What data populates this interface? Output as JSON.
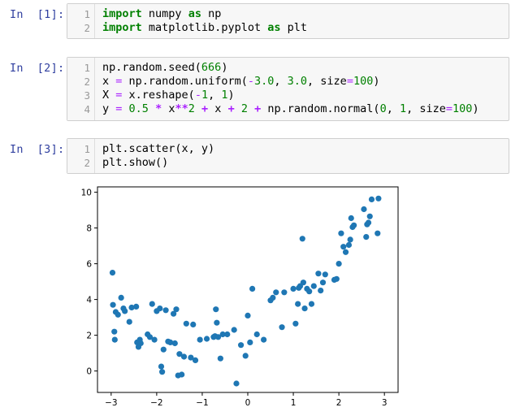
{
  "cells": [
    {
      "prompt": "In  [1]:",
      "lines": [
        {
          "no": "1",
          "tokens": [
            {
              "t": "import",
              "c": "kw"
            },
            {
              "t": " numpy ",
              "c": "plain"
            },
            {
              "t": "as",
              "c": "kw"
            },
            {
              "t": " np",
              "c": "plain"
            }
          ]
        },
        {
          "no": "2",
          "tokens": [
            {
              "t": "import",
              "c": "kw"
            },
            {
              "t": " matplotlib.pyplot ",
              "c": "plain"
            },
            {
              "t": "as",
              "c": "kw"
            },
            {
              "t": " plt",
              "c": "plain"
            }
          ]
        }
      ]
    },
    {
      "prompt": "In  [2]:",
      "lines": [
        {
          "no": "1",
          "tokens": [
            {
              "t": "np.random.seed(",
              "c": "plain"
            },
            {
              "t": "666",
              "c": "num"
            },
            {
              "t": ")",
              "c": "plain"
            }
          ]
        },
        {
          "no": "2",
          "tokens": [
            {
              "t": "x ",
              "c": "plain"
            },
            {
              "t": "=",
              "c": "eq"
            },
            {
              "t": " np.random.uniform(",
              "c": "plain"
            },
            {
              "t": "-",
              "c": "eq"
            },
            {
              "t": "3.0",
              "c": "num"
            },
            {
              "t": ", ",
              "c": "plain"
            },
            {
              "t": "3.0",
              "c": "num"
            },
            {
              "t": ", size",
              "c": "plain"
            },
            {
              "t": "=",
              "c": "eq"
            },
            {
              "t": "100",
              "c": "num"
            },
            {
              "t": ")",
              "c": "plain"
            }
          ]
        },
        {
          "no": "3",
          "tokens": [
            {
              "t": "X ",
              "c": "plain"
            },
            {
              "t": "=",
              "c": "eq"
            },
            {
              "t": " x.reshape(",
              "c": "plain"
            },
            {
              "t": "-",
              "c": "eq"
            },
            {
              "t": "1",
              "c": "num"
            },
            {
              "t": ", ",
              "c": "plain"
            },
            {
              "t": "1",
              "c": "num"
            },
            {
              "t": ")",
              "c": "plain"
            }
          ]
        },
        {
          "no": "4",
          "tokens": [
            {
              "t": "y ",
              "c": "plain"
            },
            {
              "t": "=",
              "c": "eq"
            },
            {
              "t": " ",
              "c": "plain"
            },
            {
              "t": "0.5",
              "c": "num"
            },
            {
              "t": " ",
              "c": "plain"
            },
            {
              "t": "*",
              "c": "op"
            },
            {
              "t": " x",
              "c": "plain"
            },
            {
              "t": "**",
              "c": "op"
            },
            {
              "t": "2",
              "c": "num"
            },
            {
              "t": " ",
              "c": "plain"
            },
            {
              "t": "+",
              "c": "op"
            },
            {
              "t": " x ",
              "c": "plain"
            },
            {
              "t": "+",
              "c": "op"
            },
            {
              "t": " ",
              "c": "plain"
            },
            {
              "t": "2",
              "c": "num"
            },
            {
              "t": " ",
              "c": "plain"
            },
            {
              "t": "+",
              "c": "op"
            },
            {
              "t": " np.random.normal(",
              "c": "plain"
            },
            {
              "t": "0",
              "c": "num"
            },
            {
              "t": ", ",
              "c": "plain"
            },
            {
              "t": "1",
              "c": "num"
            },
            {
              "t": ", size",
              "c": "plain"
            },
            {
              "t": "=",
              "c": "eq"
            },
            {
              "t": "100",
              "c": "num"
            },
            {
              "t": ")",
              "c": "plain"
            }
          ]
        }
      ]
    },
    {
      "prompt": "In  [3]:",
      "lines": [
        {
          "no": "1",
          "tokens": [
            {
              "t": "plt.scatter(x, y)",
              "c": "plain"
            }
          ]
        },
        {
          "no": "2",
          "tokens": [
            {
              "t": "plt.show()",
              "c": "plain"
            }
          ]
        }
      ]
    }
  ],
  "chart_data": {
    "type": "scatter",
    "title": "",
    "xlabel": "",
    "ylabel": "",
    "xlim": [
      -3.3,
      3.3
    ],
    "ylim": [
      -1.2,
      10.3
    ],
    "xticks": [
      -3,
      -2,
      -1,
      0,
      1,
      2,
      3
    ],
    "yticks": [
      0,
      2,
      4,
      6,
      8,
      10
    ],
    "grid": false,
    "point_color": "#1f77b4",
    "points": [
      [
        -2.97,
        5.5
      ],
      [
        -2.96,
        3.7
      ],
      [
        -2.93,
        2.2
      ],
      [
        -2.92,
        1.75
      ],
      [
        -2.9,
        3.3
      ],
      [
        -2.85,
        3.15
      ],
      [
        -2.78,
        4.1
      ],
      [
        -2.73,
        3.5
      ],
      [
        -2.7,
        3.35
      ],
      [
        -2.6,
        2.75
      ],
      [
        -2.55,
        3.55
      ],
      [
        -2.45,
        3.6
      ],
      [
        -2.43,
        1.6
      ],
      [
        -2.4,
        1.35
      ],
      [
        -2.37,
        1.75
      ],
      [
        -2.35,
        1.55
      ],
      [
        -2.2,
        2.05
      ],
      [
        -2.15,
        1.9
      ],
      [
        -2.1,
        3.75
      ],
      [
        -2.05,
        1.75
      ],
      [
        -2.0,
        3.35
      ],
      [
        -1.93,
        3.5
      ],
      [
        -1.9,
        0.25
      ],
      [
        -1.88,
        -0.05
      ],
      [
        -1.85,
        1.2
      ],
      [
        -1.8,
        3.4
      ],
      [
        -1.75,
        1.65
      ],
      [
        -1.7,
        1.6
      ],
      [
        -1.63,
        3.2
      ],
      [
        -1.6,
        1.55
      ],
      [
        -1.57,
        3.45
      ],
      [
        -1.53,
        -0.25
      ],
      [
        -1.5,
        0.95
      ],
      [
        -1.45,
        -0.2
      ],
      [
        -1.4,
        0.8
      ],
      [
        -1.35,
        2.65
      ],
      [
        -1.25,
        0.75
      ],
      [
        -1.2,
        2.6
      ],
      [
        -1.15,
        0.6
      ],
      [
        -1.05,
        1.75
      ],
      [
        -0.9,
        1.8
      ],
      [
        -0.75,
        1.9
      ],
      [
        -0.72,
        1.95
      ],
      [
        -0.7,
        3.45
      ],
      [
        -0.68,
        2.7
      ],
      [
        -0.65,
        1.9
      ],
      [
        -0.6,
        0.7
      ],
      [
        -0.55,
        2.05
      ],
      [
        -0.45,
        2.05
      ],
      [
        -0.3,
        2.3
      ],
      [
        -0.25,
        -0.7
      ],
      [
        -0.15,
        1.45
      ],
      [
        -0.05,
        0.85
      ],
      [
        0.0,
        3.1
      ],
      [
        0.05,
        1.6
      ],
      [
        0.1,
        4.6
      ],
      [
        0.2,
        2.05
      ],
      [
        0.35,
        1.75
      ],
      [
        0.5,
        3.95
      ],
      [
        0.55,
        4.1
      ],
      [
        0.62,
        4.4
      ],
      [
        0.75,
        2.45
      ],
      [
        0.8,
        4.4
      ],
      [
        1.0,
        4.6
      ],
      [
        1.05,
        2.65
      ],
      [
        1.1,
        3.75
      ],
      [
        1.12,
        4.65
      ],
      [
        1.15,
        4.75
      ],
      [
        1.2,
        7.4
      ],
      [
        1.22,
        4.95
      ],
      [
        1.25,
        3.5
      ],
      [
        1.3,
        4.6
      ],
      [
        1.35,
        4.45
      ],
      [
        1.4,
        3.75
      ],
      [
        1.45,
        4.75
      ],
      [
        1.55,
        5.45
      ],
      [
        1.6,
        4.5
      ],
      [
        1.65,
        4.95
      ],
      [
        1.7,
        5.4
      ],
      [
        1.9,
        5.1
      ],
      [
        1.95,
        5.15
      ],
      [
        2.0,
        6.0
      ],
      [
        2.05,
        7.7
      ],
      [
        2.1,
        6.95
      ],
      [
        2.15,
        6.65
      ],
      [
        2.22,
        7.05
      ],
      [
        2.25,
        7.35
      ],
      [
        2.27,
        8.55
      ],
      [
        2.3,
        8.05
      ],
      [
        2.33,
        8.15
      ],
      [
        2.55,
        9.05
      ],
      [
        2.6,
        7.5
      ],
      [
        2.62,
        8.2
      ],
      [
        2.65,
        8.3
      ],
      [
        2.68,
        8.65
      ],
      [
        2.72,
        9.6
      ],
      [
        2.85,
        7.7
      ],
      [
        2.87,
        9.65
      ]
    ]
  }
}
